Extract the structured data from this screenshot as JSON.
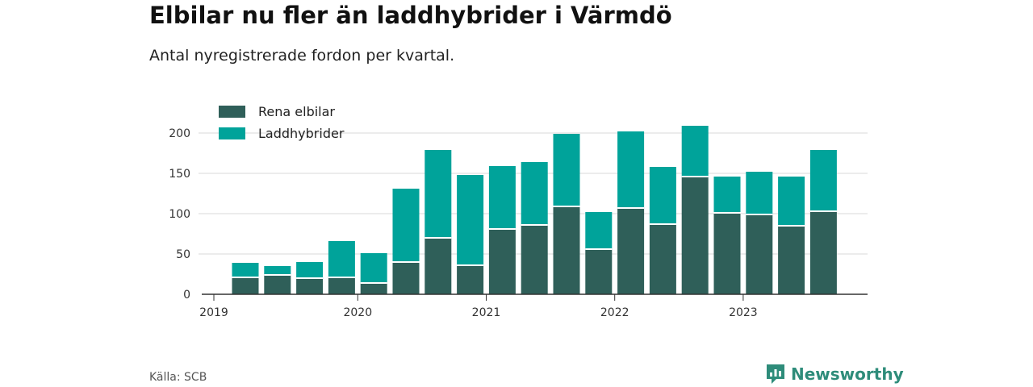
{
  "header": {
    "title": "Elbilar nu fler än laddhybrider i Värmdö",
    "subtitle": "Antal nyregistrerade fordon per kvartal."
  },
  "footer": {
    "source": "Källa: SCB",
    "brand": "Newsworthy"
  },
  "colors": {
    "elbilar": "#2f5f59",
    "laddhybrider": "#00a39a",
    "grid": "#d9d9d9",
    "axis": "#333333",
    "brand": "#2e8c7a"
  },
  "chart_data": {
    "type": "bar",
    "stacked": true,
    "title": "Elbilar nu fler än laddhybrider i Värmdö",
    "subtitle": "Antal nyregistrerade fordon per kvartal.",
    "xlabel": "",
    "ylabel": "",
    "ylim": [
      0,
      220
    ],
    "yticks": [
      0,
      50,
      100,
      150,
      200
    ],
    "grid": true,
    "legend_position": "top-left",
    "categories": [
      "2019 Q2",
      "2019 Q3",
      "2019 Q4",
      "2020 Q1",
      "2020 Q2",
      "2020 Q3",
      "2020 Q4",
      "2021 Q1",
      "2021 Q2",
      "2021 Q3",
      "2021 Q4",
      "2022 Q1",
      "2022 Q2",
      "2022 Q3",
      "2022 Q4",
      "2023 Q1",
      "2023 Q2",
      "2023 Q3",
      "2023 Q4"
    ],
    "x_tick_labels": [
      "2019",
      "2020",
      "2021",
      "2022",
      "2023"
    ],
    "x_tick_positions": [
      0,
      4,
      8,
      12,
      16
    ],
    "series": [
      {
        "name": "Rena elbilar",
        "values": [
          21,
          24,
          20,
          21,
          14,
          40,
          70,
          36,
          81,
          86,
          109,
          56,
          107,
          87,
          146,
          101,
          99,
          85,
          103
        ]
      },
      {
        "name": "Laddhybrider",
        "values": [
          18,
          11,
          20,
          45,
          37,
          91,
          109,
          112,
          78,
          78,
          90,
          46,
          95,
          71,
          63,
          45,
          53,
          61,
          76
        ]
      }
    ]
  }
}
